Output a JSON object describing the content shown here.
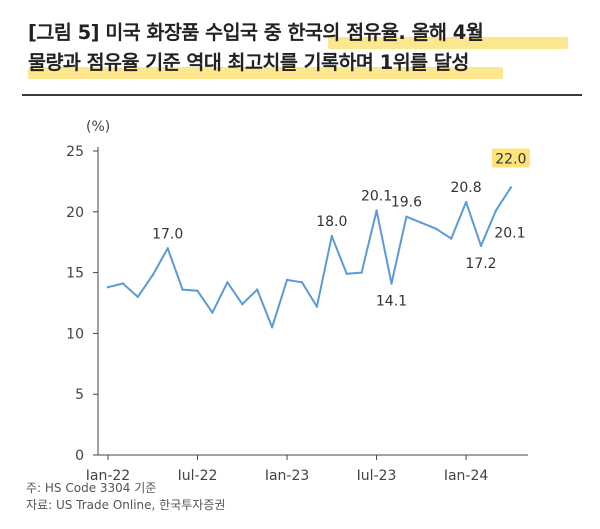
{
  "title": {
    "line1": "[그림 5] 미국 화장품 수입국 중 한국의 점유율. 올해 4월",
    "line2": "물량과 점유율 기준 역대 최고치를 기록하며 1위를 달성"
  },
  "notes": {
    "note": "주: HS Code 3304 기준",
    "source": "자료: US Trade Online, 한국투자증권"
  },
  "colors": {
    "line": "#5b9bd5",
    "highlight": "#fde37a",
    "axis": "#444444"
  },
  "chart_data": {
    "type": "line",
    "ylabel": "(%)",
    "ylim": [
      0,
      25
    ],
    "yticks": [
      0,
      5,
      10,
      15,
      20,
      25
    ],
    "xticks": [
      "Jan-22",
      "Jul-22",
      "Jan-23",
      "Jul-23",
      "Jan-24"
    ],
    "xtick_index": [
      0,
      6,
      12,
      18,
      24
    ],
    "grid": false,
    "x": [
      "2022-01",
      "2022-02",
      "2022-03",
      "2022-04",
      "2022-05",
      "2022-06",
      "2022-07",
      "2022-08",
      "2022-09",
      "2022-10",
      "2022-11",
      "2022-12",
      "2023-01",
      "2023-02",
      "2023-03",
      "2023-04",
      "2023-05",
      "2023-06",
      "2023-07",
      "2023-08",
      "2023-09",
      "2023-10",
      "2023-11",
      "2023-12",
      "2024-01",
      "2024-02",
      "2024-03",
      "2024-04"
    ],
    "values": [
      13.8,
      14.1,
      13.0,
      14.8,
      17.0,
      13.6,
      13.5,
      11.7,
      14.2,
      12.4,
      13.6,
      10.5,
      14.4,
      14.2,
      12.2,
      18.0,
      14.9,
      15.0,
      20.1,
      14.1,
      19.6,
      19.1,
      18.6,
      17.8,
      20.8,
      17.2,
      20.1,
      22.0
    ],
    "annotations": [
      {
        "index": 4,
        "text": "17.0",
        "pos": "above"
      },
      {
        "index": 15,
        "text": "18.0",
        "pos": "above"
      },
      {
        "index": 18,
        "text": "20.1",
        "pos": "above"
      },
      {
        "index": 19,
        "text": "14.1",
        "pos": "below"
      },
      {
        "index": 20,
        "text": "19.6",
        "pos": "above"
      },
      {
        "index": 24,
        "text": "20.8",
        "pos": "above"
      },
      {
        "index": 25,
        "text": "17.2",
        "pos": "below"
      },
      {
        "index": 26,
        "text": "20.1",
        "pos": "below-right"
      },
      {
        "index": 27,
        "text": "22.0",
        "pos": "above",
        "highlight": true
      }
    ]
  }
}
